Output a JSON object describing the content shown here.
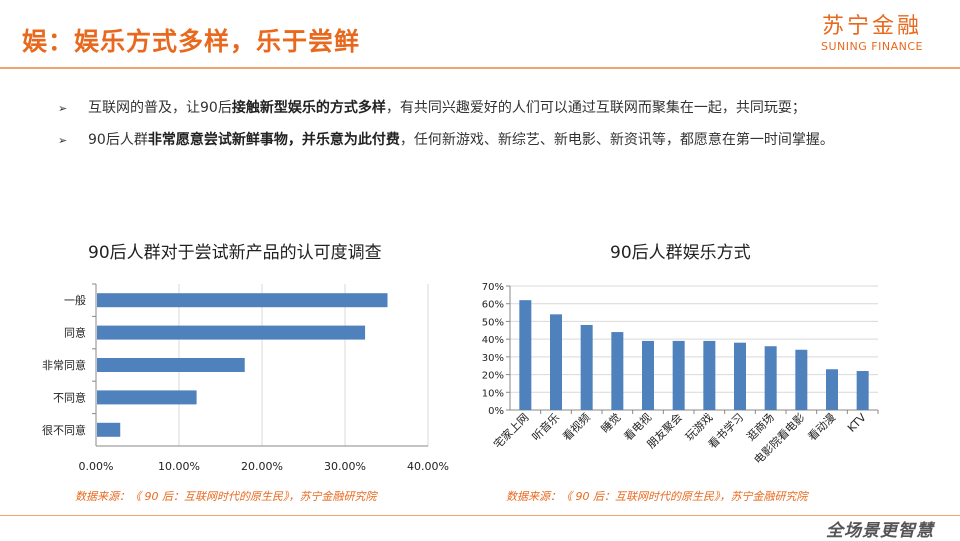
{
  "header": {
    "title": "娱：娱乐方式多样，乐于尝鲜",
    "logo_cn": "苏宁金融",
    "logo_en": "SUNING FINANCE"
  },
  "bullets": [
    {
      "pre": "互联网的普及，让90后",
      "bold": "接触新型娱乐的方式多样",
      "post": "，有共同兴趣爱好的人们可以通过互联网而聚集在一起，共同玩耍；"
    },
    {
      "pre": "90后人群",
      "bold": "非常愿意尝试新鲜事物，并乐意为此付费",
      "post": "，任何新游戏、新综艺、新电影、新资讯等，都愿意在第一时间掌握。"
    }
  ],
  "left_chart": {
    "title": "90后人群对于尝试新产品的认可度调查",
    "source": "数据来源：《 90 后：互联网时代的原生民》，苏宁金融研究院"
  },
  "right_chart": {
    "title": "90后人群娱乐方式",
    "source": "数据来源：《 90 后：互联网时代的原生民》，苏宁金融研究院"
  },
  "footer": {
    "logo": "全场景更智慧"
  },
  "colors": {
    "accent": "#e8691e",
    "bar": "#4f81bd"
  },
  "chart_data": [
    {
      "type": "bar",
      "orientation": "horizontal",
      "categories": [
        "一般",
        "同意",
        "非常同意",
        "不同意",
        "很不同意"
      ],
      "values": [
        35.0,
        32.3,
        17.8,
        12.0,
        2.8
      ],
      "xlim": [
        0,
        40
      ],
      "xticks": [
        "0.00%",
        "10.00%",
        "20.00%",
        "30.00%",
        "40.00%"
      ],
      "grid": true
    },
    {
      "type": "bar",
      "categories": [
        "宅家上网",
        "听音乐",
        "看视频",
        "睡觉",
        "看电视",
        "朋友聚会",
        "玩游戏",
        "看书学习",
        "逛商场",
        "电影院看电影",
        "看动漫",
        "KTV"
      ],
      "values": [
        62,
        54,
        48,
        44,
        39,
        39,
        39,
        38,
        36,
        34,
        23,
        22
      ],
      "ylim": [
        0,
        70
      ],
      "yticks": [
        "0%",
        "10%",
        "20%",
        "30%",
        "40%",
        "50%",
        "60%",
        "70%"
      ],
      "grid": true
    }
  ]
}
